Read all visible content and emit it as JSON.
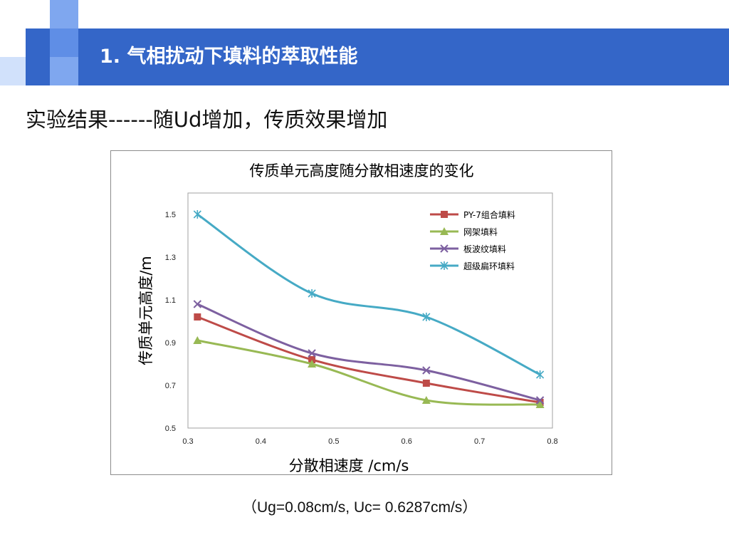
{
  "slide": {
    "title": "1. 气相扰动下填料的萃取性能",
    "subtitle": "实验结果------随Ud增加，传质效果增加",
    "footnote": "（Ug=0.08cm/s, Uc= 0.6287cm/s）",
    "accent_colors": [
      "#3466c8",
      "#7fa7ef",
      "#a9c6f7",
      "#d1e1fb"
    ]
  },
  "chart_data": {
    "type": "line",
    "title": "传质单元高度随分散相速度的变化",
    "xlabel": "分散相速度 /cm/s",
    "ylabel": "传质单元高度/m",
    "xlim": [
      0.3,
      0.8
    ],
    "ylim": [
      0.5,
      1.6
    ],
    "x_ticks": [
      "0.3",
      "0.4",
      "0.5",
      "0.6",
      "0.7",
      "0.8"
    ],
    "y_ticks": [
      "0.5",
      "0.7",
      "0.9",
      "1.1",
      "1.3",
      "1.5"
    ],
    "x_tick_values": [
      0.3,
      0.4,
      0.5,
      0.6,
      0.7,
      0.8
    ],
    "y_tick_values": [
      0.5,
      0.7,
      0.9,
      1.1,
      1.3,
      1.5
    ],
    "grid": false,
    "smooth": true,
    "legend_position": "top-right",
    "series": [
      {
        "name": "PY-7组合填料",
        "color": "#be4b48",
        "marker": "square",
        "x": [
          0.313,
          0.47,
          0.627,
          0.783
        ],
        "y": [
          1.02,
          0.82,
          0.71,
          0.62
        ]
      },
      {
        "name": "网架填料",
        "color": "#98b954",
        "marker": "triangle",
        "x": [
          0.313,
          0.47,
          0.627,
          0.783
        ],
        "y": [
          0.91,
          0.8,
          0.63,
          0.61
        ]
      },
      {
        "name": "板波纹填料",
        "color": "#7d60a0",
        "marker": "x",
        "x": [
          0.313,
          0.47,
          0.627,
          0.783
        ],
        "y": [
          1.08,
          0.85,
          0.77,
          0.63
        ]
      },
      {
        "name": "超级扁环填料",
        "color": "#46aac5",
        "marker": "star",
        "x": [
          0.313,
          0.47,
          0.627,
          0.783
        ],
        "y": [
          1.5,
          1.13,
          1.02,
          0.75
        ]
      }
    ]
  }
}
